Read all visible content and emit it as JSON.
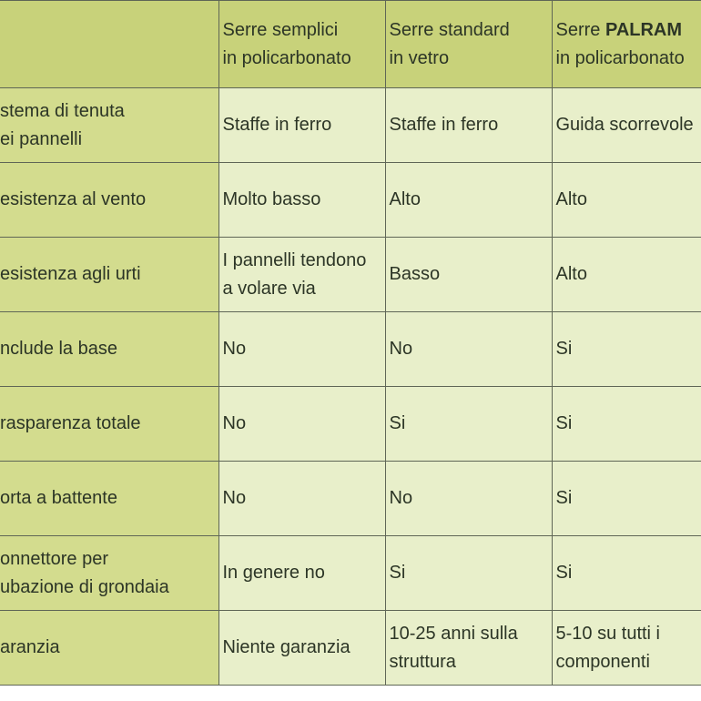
{
  "header": {
    "col1": [
      "Serre semplici",
      "in policarbonato"
    ],
    "col2": [
      "Serre standard",
      "in vetro"
    ],
    "col3_prefix": "Serre ",
    "col3_brand": "PALRAM",
    "col3_line2": "in policarbonato"
  },
  "rows": [
    {
      "label": [
        "stema di tenuta",
        "ei pannelli"
      ],
      "c1": [
        "Staffe in ferro"
      ],
      "c2": [
        "Staffe in ferro"
      ],
      "c3": [
        "Guida scorrevole"
      ]
    },
    {
      "label": [
        "esistenza al vento"
      ],
      "c1": [
        "Molto basso"
      ],
      "c2": [
        "Alto"
      ],
      "c3": [
        "Alto"
      ]
    },
    {
      "label": [
        "esistenza agli urti"
      ],
      "c1": [
        "I pannelli tendono",
        "a volare via"
      ],
      "c2": [
        "Basso"
      ],
      "c3": [
        "Alto"
      ]
    },
    {
      "label": [
        "nclude la base"
      ],
      "c1": [
        "No"
      ],
      "c2": [
        "No"
      ],
      "c3": [
        "Si"
      ]
    },
    {
      "label": [
        "rasparenza totale"
      ],
      "c1": [
        "No"
      ],
      "c2": [
        "Si"
      ],
      "c3": [
        "Si"
      ]
    },
    {
      "label": [
        "orta a battente"
      ],
      "c1": [
        "No"
      ],
      "c2": [
        "No"
      ],
      "c3": [
        "Si"
      ]
    },
    {
      "label": [
        "onnettore per",
        "ubazione di grondaia"
      ],
      "c1": [
        "In genere no"
      ],
      "c2": [
        "Si"
      ],
      "c3": [
        "Si"
      ]
    },
    {
      "label": [
        "aranzia"
      ],
      "c1": [
        "Niente garanzia"
      ],
      "c2": [
        "10-25 anni sulla",
        "struttura"
      ],
      "c3": [
        "5-10 su tutti i",
        "componenti"
      ]
    }
  ],
  "colors": {
    "header": "#c8d27a",
    "rowhead": "#d3dc8e",
    "cell": "#e8efca",
    "grid": "#5f6656"
  }
}
